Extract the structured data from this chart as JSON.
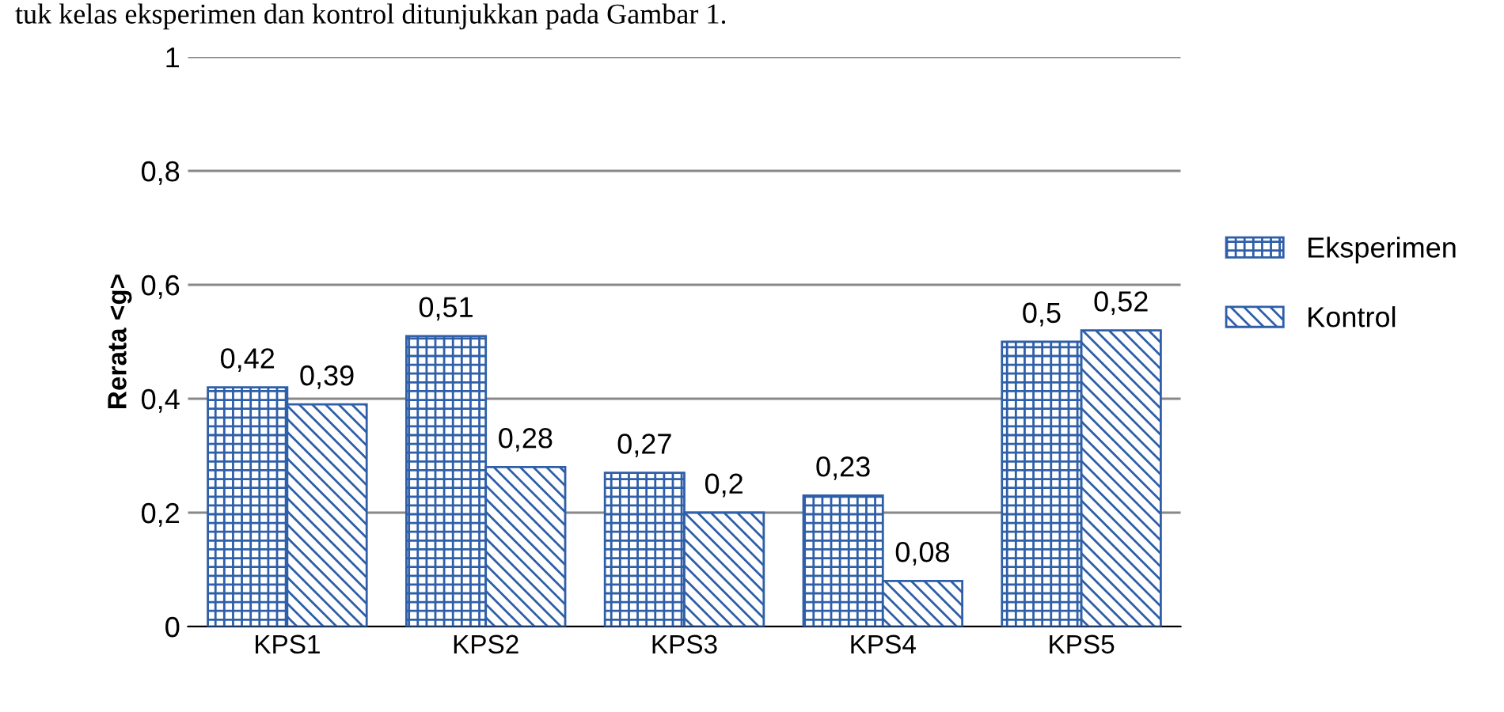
{
  "chart_data": {
    "type": "bar",
    "ylabel": "Rerata <g>",
    "annotations": [
      "tuk kelas eksperimen dan kontrol ditunjukkan pada Gambar 1."
    ],
    "categories": [
      "KPS1",
      "KPS2",
      "KPS3",
      "KPS4",
      "KPS5"
    ],
    "series": [
      {
        "name": "Eksperimen",
        "color": "#2e5fa8",
        "values": [
          0.42,
          0.51,
          0.27,
          0.23,
          0.5
        ],
        "value_labels": [
          "0,42",
          "0,51",
          "0,27",
          "0,23",
          "0,5"
        ]
      },
      {
        "name": "Kontrol",
        "color": "#2e5fa8",
        "values": [
          0.39,
          0.28,
          0.2,
          0.08,
          0.52
        ],
        "value_labels": [
          "0,39",
          "0,28",
          "0,2",
          "0,08",
          "0,52"
        ]
      }
    ],
    "ylim": [
      0,
      1
    ],
    "yticks": [
      0,
      {
        "value": 0.2,
        "label": "0,2"
      },
      {
        "value": 0.4,
        "label": "0,4"
      },
      {
        "value": 0.6,
        "label": "0,6"
      },
      {
        "value": 0.8,
        "label": "0,8"
      },
      1
    ],
    "grid": "y",
    "legend": "right"
  }
}
